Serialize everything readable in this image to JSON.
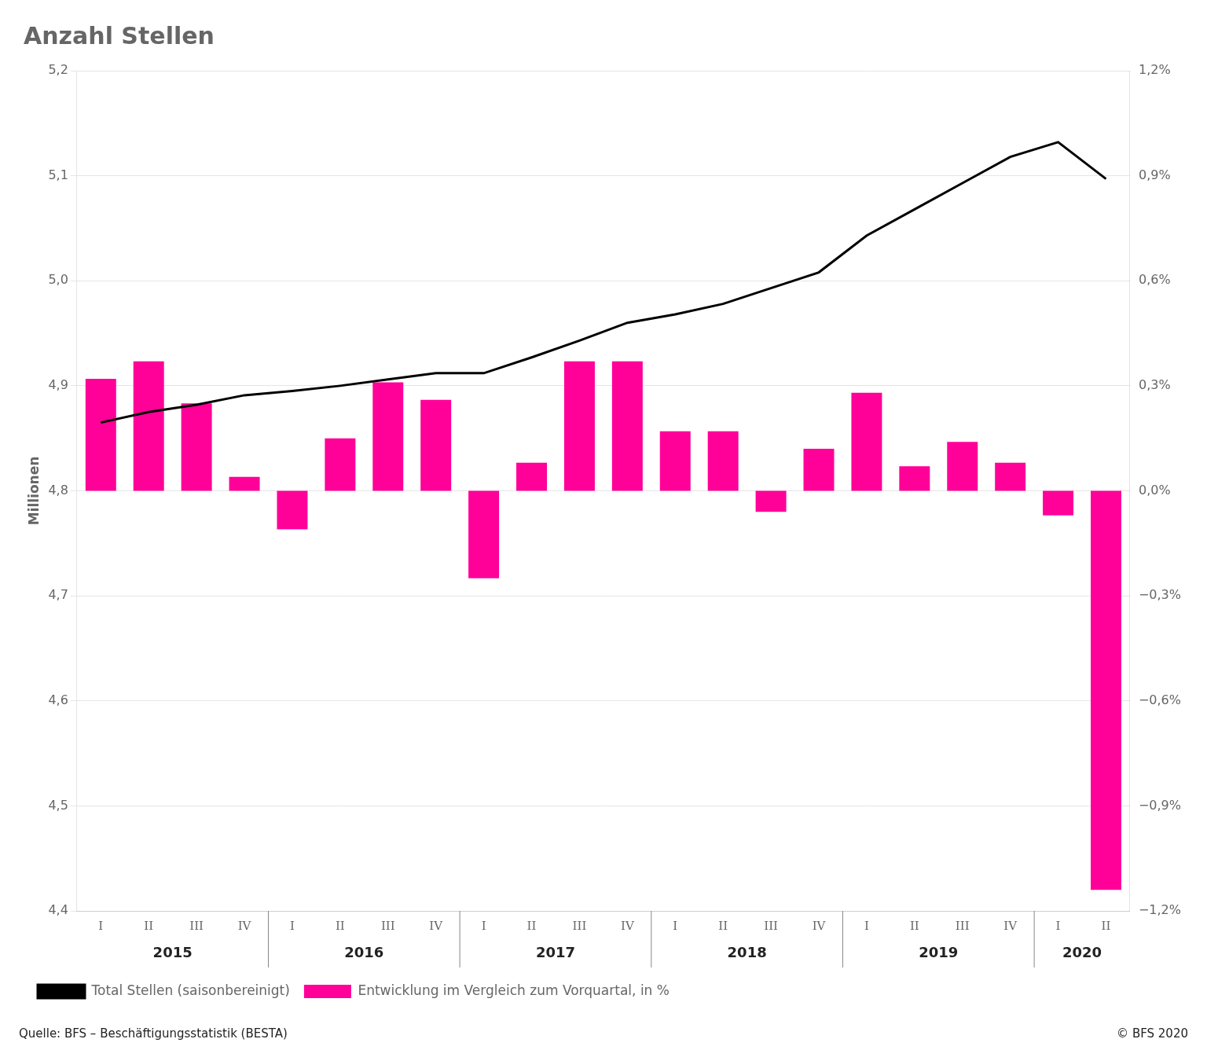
{
  "chart_data": {
    "type": "bar",
    "title": "Anzahl Stellen",
    "ylabel": "Millionen",
    "categories": [
      "I",
      "II",
      "III",
      "IV",
      "I",
      "II",
      "III",
      "IV",
      "I",
      "II",
      "III",
      "IV",
      "I",
      "II",
      "III",
      "IV",
      "I",
      "II",
      "III",
      "IV",
      "I",
      "II"
    ],
    "x_group_labels": [
      "2015",
      "2016",
      "2017",
      "2018",
      "2019",
      "2020"
    ],
    "series": [
      {
        "name": "Total Stellen (saisonbereinigt)",
        "type": "line",
        "color": "#000000",
        "values": [
          4.865,
          4.875,
          4.882,
          4.891,
          4.895,
          4.9,
          4.906,
          4.912,
          4.912,
          4.927,
          4.943,
          4.96,
          4.968,
          4.978,
          4.993,
          5.008,
          5.043,
          5.068,
          5.093,
          5.118,
          5.132,
          5.097
        ]
      },
      {
        "name": "Entwicklung im Vergleich zum Vorquartal, in %",
        "type": "bar",
        "color": "#FF0099",
        "axis": "y2",
        "values": [
          0.32,
          0.37,
          0.25,
          0.04,
          -0.11,
          0.15,
          0.31,
          0.26,
          -0.25,
          0.08,
          0.37,
          0.37,
          0.17,
          0.17,
          -0.06,
          0.12,
          0.28,
          0.07,
          0.14,
          0.08,
          -0.07,
          -1.14
        ]
      }
    ],
    "ylim": [
      4.4,
      5.2
    ],
    "yticks": [
      {
        "value": 4.4,
        "label": "4,4"
      },
      {
        "value": 4.5,
        "label": "4,5"
      },
      {
        "value": 4.6,
        "label": "4,6"
      },
      {
        "value": 4.7,
        "label": "4,7"
      },
      {
        "value": 4.8,
        "label": "4,8"
      },
      {
        "value": 4.9,
        "label": "4,9"
      },
      {
        "value": 5.0,
        "label": "5,0"
      },
      {
        "value": 5.1,
        "label": "5,1"
      },
      {
        "value": 5.2,
        "label": "5,2"
      }
    ],
    "y2lim": [
      -1.2,
      1.2
    ],
    "y2ticks": [
      {
        "value": -1.2,
        "label": "−1,2%"
      },
      {
        "value": -0.9,
        "label": "−0,9%"
      },
      {
        "value": -0.6,
        "label": "−0,6%"
      },
      {
        "value": -0.3,
        "label": "−0,3%"
      },
      {
        "value": 0.0,
        "label": "0,0%"
      },
      {
        "value": 0.3,
        "label": "0,3%"
      },
      {
        "value": 0.6,
        "label": "0,6%"
      },
      {
        "value": 0.9,
        "label": "0,9%"
      },
      {
        "value": 1.2,
        "label": "1,2%"
      }
    ],
    "grid": true,
    "legend": "bottom",
    "annotations": [
      "Quelle: BFS – Beschäftigungsstatistik (BESTA)",
      "© BFS 2020"
    ]
  }
}
